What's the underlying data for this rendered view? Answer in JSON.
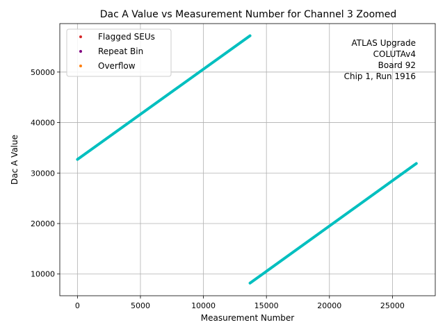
{
  "chart_data": {
    "type": "scatter",
    "title": "Dac A Value vs Measurement Number for Channel 3 Zoomed",
    "xlabel": "Measurement Number",
    "ylabel": "Dac A Value",
    "xlim": [
      -1400,
      28400
    ],
    "ylim": [
      5700,
      59600
    ],
    "xticks": [
      0,
      5000,
      10000,
      15000,
      20000,
      25000
    ],
    "yticks": [
      10000,
      20000,
      30000,
      40000,
      50000
    ],
    "grid": true,
    "legend_position": "top-left",
    "legend": [
      {
        "name": "Flagged SEUs",
        "color": "#d62728"
      },
      {
        "name": "Repeat Bin",
        "color": "#800080"
      },
      {
        "name": "Overflow",
        "color": "#ff7f0e"
      }
    ],
    "annotation_lines": [
      "ATLAS Upgrade",
      "COLUTAv4",
      "Board 92",
      "Chip 1, Run 1916"
    ],
    "series": [
      {
        "color": "#00bfbf",
        "segments": [
          {
            "x": [
              0,
              13700
            ],
            "y": [
              32700,
              57200
            ]
          },
          {
            "x": [
              13700,
              26900
            ],
            "y": [
              8200,
              31900
            ]
          }
        ]
      }
    ]
  }
}
